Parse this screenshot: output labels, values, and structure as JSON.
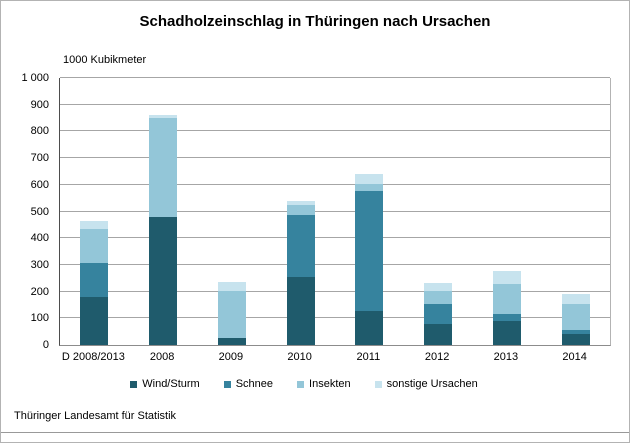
{
  "page": {
    "footer": "Thüringer Landesamt für Statistik"
  },
  "chart_data": {
    "type": "bar",
    "stacked": true,
    "title": "Schadholzeinschlag in Thüringen nach Ursachen",
    "unit_label": "1000 Kubikmeter",
    "categories": [
      "D 2008/2013",
      "2008",
      "2009",
      "2010",
      "2011",
      "2012",
      "2013",
      "2014"
    ],
    "series": [
      {
        "name": "Wind/Sturm",
        "color": "#1f5b6c",
        "values": [
          180,
          478,
          25,
          255,
          127,
          80,
          90,
          40
        ]
      },
      {
        "name": "Schnee",
        "color": "#36839e",
        "values": [
          127,
          0,
          0,
          232,
          450,
          75,
          25,
          15
        ]
      },
      {
        "name": "Insekten",
        "color": "#93c6d8",
        "values": [
          128,
          372,
          177,
          38,
          25,
          47,
          113,
          100
        ]
      },
      {
        "name": "sonstige Ursachen",
        "color": "#c7e3ee",
        "values": [
          30,
          12,
          35,
          15,
          38,
          30,
          50,
          35
        ]
      }
    ],
    "ylim": [
      0,
      1000
    ],
    "y_tick_step": 100,
    "y_tick_labels": [
      "0",
      "100",
      "200",
      "300",
      "400",
      "500",
      "600",
      "700",
      "800",
      "900",
      "1 000"
    ],
    "grid": true,
    "legend_position": "bottom"
  },
  "colors": {
    "grid": "#a6a6a6",
    "axis": "#4d4d4d",
    "text": "#000000",
    "border": "#b3b3b3"
  }
}
